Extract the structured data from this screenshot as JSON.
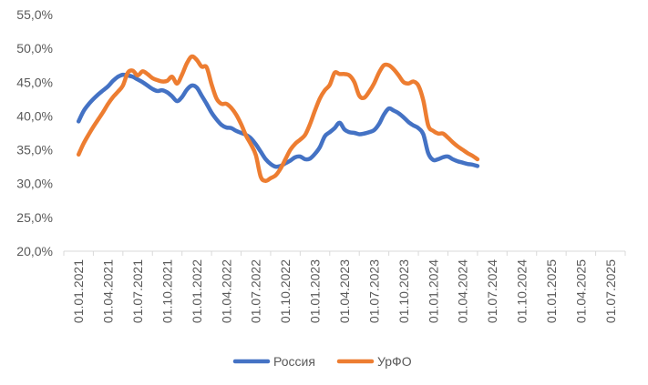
{
  "chart_data": {
    "type": "line",
    "title": "",
    "xlabel": "",
    "ylabel": "",
    "ylim": [
      20,
      55
    ],
    "y_ticks": [
      "20,0%",
      "25,0%",
      "30,0%",
      "35,0%",
      "40,0%",
      "45,0%",
      "50,0%",
      "55,0%"
    ],
    "x_tick_labels": [
      "01.01.2021",
      "01.04.2021",
      "01.07.2021",
      "01.10.2021",
      "01.01.2022",
      "01.04.2022",
      "01.07.2022",
      "01.10.2022",
      "01.01.2023",
      "01.04.2023",
      "01.07.2023",
      "01.10.2023",
      "01.01.2024",
      "01.04.2024",
      "01.07.2024",
      "01.10.2024",
      "01.01.2025",
      "01.04.2025",
      "01.07.2025"
    ],
    "x_range_months": [
      0,
      54
    ],
    "grid": false,
    "legend_position": "bottom",
    "series": [
      {
        "name": "Россия",
        "color": "#4472C4",
        "points": [
          [
            0,
            39.2
          ],
          [
            0.5,
            40.7
          ],
          [
            1,
            41.7
          ],
          [
            1.5,
            42.5
          ],
          [
            2,
            43.2
          ],
          [
            2.5,
            43.8
          ],
          [
            3,
            44.4
          ],
          [
            3.5,
            45.2
          ],
          [
            4,
            45.8
          ],
          [
            4.5,
            46.1
          ],
          [
            5,
            46.0
          ],
          [
            5.5,
            45.8
          ],
          [
            6,
            45.4
          ],
          [
            6.5,
            45.0
          ],
          [
            7,
            44.5
          ],
          [
            7.5,
            44.0
          ],
          [
            8,
            43.7
          ],
          [
            8.5,
            43.8
          ],
          [
            9,
            43.5
          ],
          [
            9.5,
            42.9
          ],
          [
            10,
            42.2
          ],
          [
            10.5,
            42.8
          ],
          [
            11,
            43.9
          ],
          [
            11.5,
            44.5
          ],
          [
            12,
            44.2
          ],
          [
            12.5,
            43.0
          ],
          [
            13,
            41.8
          ],
          [
            13.5,
            40.5
          ],
          [
            14,
            39.5
          ],
          [
            14.5,
            38.7
          ],
          [
            15,
            38.3
          ],
          [
            15.5,
            38.2
          ],
          [
            16,
            37.8
          ],
          [
            16.5,
            37.5
          ],
          [
            17,
            37.2
          ],
          [
            17.5,
            36.7
          ],
          [
            18,
            35.8
          ],
          [
            18.5,
            34.7
          ],
          [
            19,
            33.6
          ],
          [
            19.5,
            32.9
          ],
          [
            20,
            32.5
          ],
          [
            20.5,
            32.6
          ],
          [
            21,
            33.0
          ],
          [
            21.5,
            33.4
          ],
          [
            22,
            33.9
          ],
          [
            22.5,
            34.0
          ],
          [
            23,
            33.6
          ],
          [
            23.5,
            33.7
          ],
          [
            24,
            34.4
          ],
          [
            24.5,
            35.4
          ],
          [
            25,
            37.0
          ],
          [
            25.5,
            37.6
          ],
          [
            26,
            38.2
          ],
          [
            26.5,
            39.0
          ],
          [
            27,
            38.0
          ],
          [
            27.5,
            37.6
          ],
          [
            28,
            37.5
          ],
          [
            28.5,
            37.3
          ],
          [
            29,
            37.4
          ],
          [
            29.5,
            37.6
          ],
          [
            30,
            37.9
          ],
          [
            30.5,
            38.8
          ],
          [
            31,
            40.2
          ],
          [
            31.5,
            41.1
          ],
          [
            32,
            40.8
          ],
          [
            32.5,
            40.4
          ],
          [
            33,
            39.8
          ],
          [
            33.5,
            39.1
          ],
          [
            34,
            38.6
          ],
          [
            34.5,
            38.2
          ],
          [
            35,
            37.3
          ],
          [
            35.5,
            34.5
          ],
          [
            36,
            33.5
          ],
          [
            36.5,
            33.6
          ],
          [
            37,
            33.9
          ],
          [
            37.5,
            34.0
          ],
          [
            38,
            33.6
          ],
          [
            38.5,
            33.3
          ],
          [
            39,
            33.1
          ],
          [
            39.5,
            32.9
          ],
          [
            40,
            32.8
          ],
          [
            40.5,
            32.6
          ]
        ]
      },
      {
        "name": "УрФО",
        "color": "#ED7D31",
        "points": [
          [
            0,
            34.3
          ],
          [
            0.5,
            35.9
          ],
          [
            1,
            37.2
          ],
          [
            1.5,
            38.4
          ],
          [
            2,
            39.5
          ],
          [
            2.5,
            40.6
          ],
          [
            3,
            41.8
          ],
          [
            3.5,
            42.8
          ],
          [
            4,
            43.6
          ],
          [
            4.5,
            44.5
          ],
          [
            5,
            46.4
          ],
          [
            5.5,
            46.7
          ],
          [
            6,
            46.0
          ],
          [
            6.5,
            46.6
          ],
          [
            7,
            46.2
          ],
          [
            7.5,
            45.6
          ],
          [
            8,
            45.3
          ],
          [
            8.5,
            45.1
          ],
          [
            9,
            45.2
          ],
          [
            9.5,
            45.8
          ],
          [
            10,
            44.8
          ],
          [
            10.5,
            46.1
          ],
          [
            11,
            47.8
          ],
          [
            11.5,
            48.8
          ],
          [
            12,
            48.3
          ],
          [
            12.5,
            47.3
          ],
          [
            13,
            47.2
          ],
          [
            13.5,
            44.7
          ],
          [
            14,
            42.6
          ],
          [
            14.5,
            41.8
          ],
          [
            15,
            41.8
          ],
          [
            15.5,
            41.2
          ],
          [
            16,
            40.2
          ],
          [
            16.5,
            38.8
          ],
          [
            17,
            37.1
          ],
          [
            17.5,
            35.8
          ],
          [
            18,
            34.2
          ],
          [
            18.5,
            31.0
          ],
          [
            19,
            30.4
          ],
          [
            19.5,
            30.8
          ],
          [
            20,
            31.2
          ],
          [
            20.5,
            32.2
          ],
          [
            21,
            33.6
          ],
          [
            21.5,
            35.0
          ],
          [
            22,
            35.9
          ],
          [
            22.5,
            36.5
          ],
          [
            23,
            37.2
          ],
          [
            23.5,
            38.8
          ],
          [
            24,
            40.8
          ],
          [
            24.5,
            42.6
          ],
          [
            25,
            43.8
          ],
          [
            25.5,
            44.6
          ],
          [
            26,
            46.4
          ],
          [
            26.5,
            46.2
          ],
          [
            27,
            46.2
          ],
          [
            27.5,
            46.0
          ],
          [
            28,
            45.0
          ],
          [
            28.5,
            43.0
          ],
          [
            29,
            42.7
          ],
          [
            29.5,
            43.6
          ],
          [
            30,
            44.8
          ],
          [
            30.5,
            46.4
          ],
          [
            31,
            47.5
          ],
          [
            31.5,
            47.5
          ],
          [
            32,
            46.9
          ],
          [
            32.5,
            46.0
          ],
          [
            33,
            45.0
          ],
          [
            33.5,
            44.8
          ],
          [
            34,
            45.1
          ],
          [
            34.5,
            44.5
          ],
          [
            35,
            42.3
          ],
          [
            35.5,
            38.6
          ],
          [
            36,
            37.8
          ],
          [
            36.5,
            37.4
          ],
          [
            37,
            37.4
          ],
          [
            37.5,
            36.8
          ],
          [
            38,
            36.1
          ],
          [
            38.5,
            35.5
          ],
          [
            39,
            35.0
          ],
          [
            39.5,
            34.5
          ],
          [
            40,
            34.1
          ],
          [
            40.5,
            33.6
          ]
        ]
      }
    ]
  }
}
